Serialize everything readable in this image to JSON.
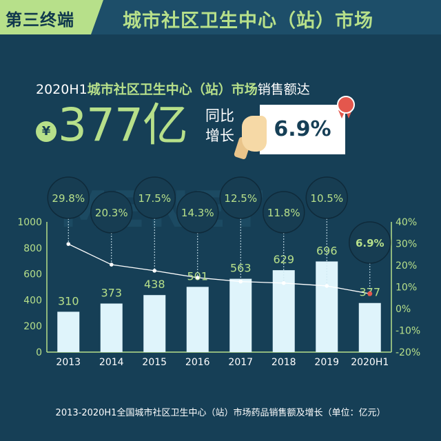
{
  "header": {
    "tag": "第三终端",
    "title": "城市社区卫生中心（站）市场"
  },
  "headline": {
    "prefix": "2020H1",
    "highlight": "城市社区卫生中心（站）市场",
    "suffix": "销售额达"
  },
  "big_number": {
    "currency_symbol": "¥",
    "value": "377亿"
  },
  "yoy": {
    "label": "同比增长",
    "value": "6.9%"
  },
  "watermark": "MENET",
  "footnote": "2013-2020H1全国城市社区卫生中心（站）市场药品销售额及增长（单位：亿元）",
  "colors": {
    "background": "#163f56",
    "accent": "#b7e08a",
    "bar": "#dff4fb",
    "text": "#ffffff",
    "badge": "#e4574d"
  },
  "chart_data": {
    "type": "bar",
    "categories": [
      "2013",
      "2014",
      "2015",
      "2016",
      "2017",
      "2018",
      "2019",
      "2020H1"
    ],
    "series": [
      {
        "values": [
          310,
          373,
          438,
          501,
          563,
          629,
          696,
          377
        ],
        "type": "bar",
        "axis": "left"
      },
      {
        "values": [
          29.8,
          20.3,
          17.5,
          14.3,
          12.5,
          11.8,
          10.5,
          6.9
        ],
        "type": "line",
        "axis": "right"
      }
    ],
    "bar_labels": [
      "310",
      "373",
      "438",
      "501",
      "563",
      "629",
      "696",
      "377"
    ],
    "growth_labels": [
      "29.8%",
      "20.3%",
      "17.5%",
      "14.3%",
      "12.5%",
      "11.8%",
      "10.5%",
      "6.9%"
    ],
    "ylim_left": [
      0,
      1000
    ],
    "yticks_left": [
      "0",
      "200",
      "400",
      "600",
      "800",
      "1000"
    ],
    "ylim_right": [
      -20,
      40
    ],
    "yticks_right": [
      "-20%",
      "-10%",
      "0%",
      "10%",
      "20%",
      "30%",
      "40%"
    ],
    "grid": false
  }
}
